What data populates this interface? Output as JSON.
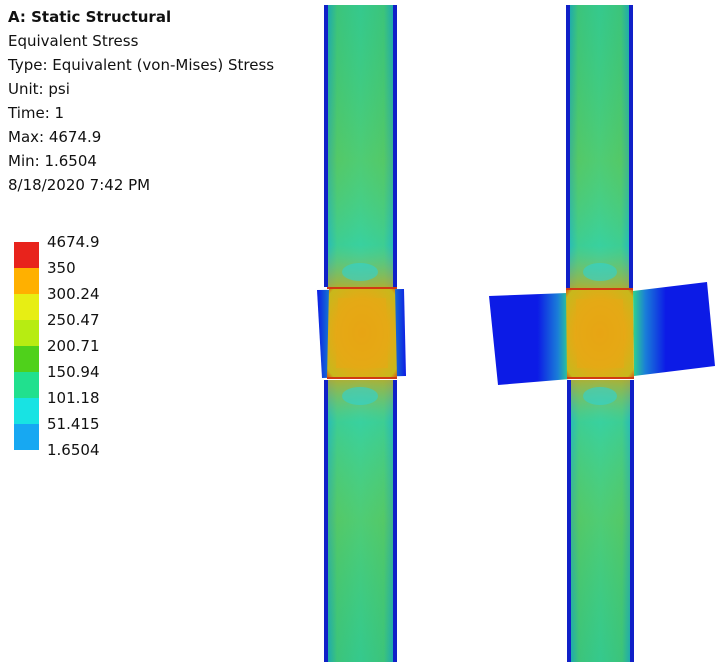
{
  "header": {
    "title": "A: Static Structural",
    "result": "Equivalent Stress",
    "type": "Type: Equivalent (von-Mises) Stress",
    "unit": "Unit: psi",
    "time": "Time: 1",
    "max": "Max: 4674.9",
    "min": "Min: 1.6504",
    "timestamp": "8/18/2020 7:42 PM"
  },
  "legend": {
    "labels": [
      "4674.9",
      "350",
      "300.24",
      "250.47",
      "200.71",
      "150.94",
      "101.18",
      "51.415",
      "1.6504"
    ],
    "colors": [
      "#e8231c",
      "#ffb000",
      "#e7ee14",
      "#b7ec12",
      "#4fd11b",
      "#21e08e",
      "#18e3e3",
      "#17a8f2",
      "#0c1be6"
    ]
  },
  "colors": {
    "background": "#ffffff",
    "low_stress": "#0c1be6",
    "mid_stress": "#3fd35c",
    "high_stress": "#e39a12"
  }
}
